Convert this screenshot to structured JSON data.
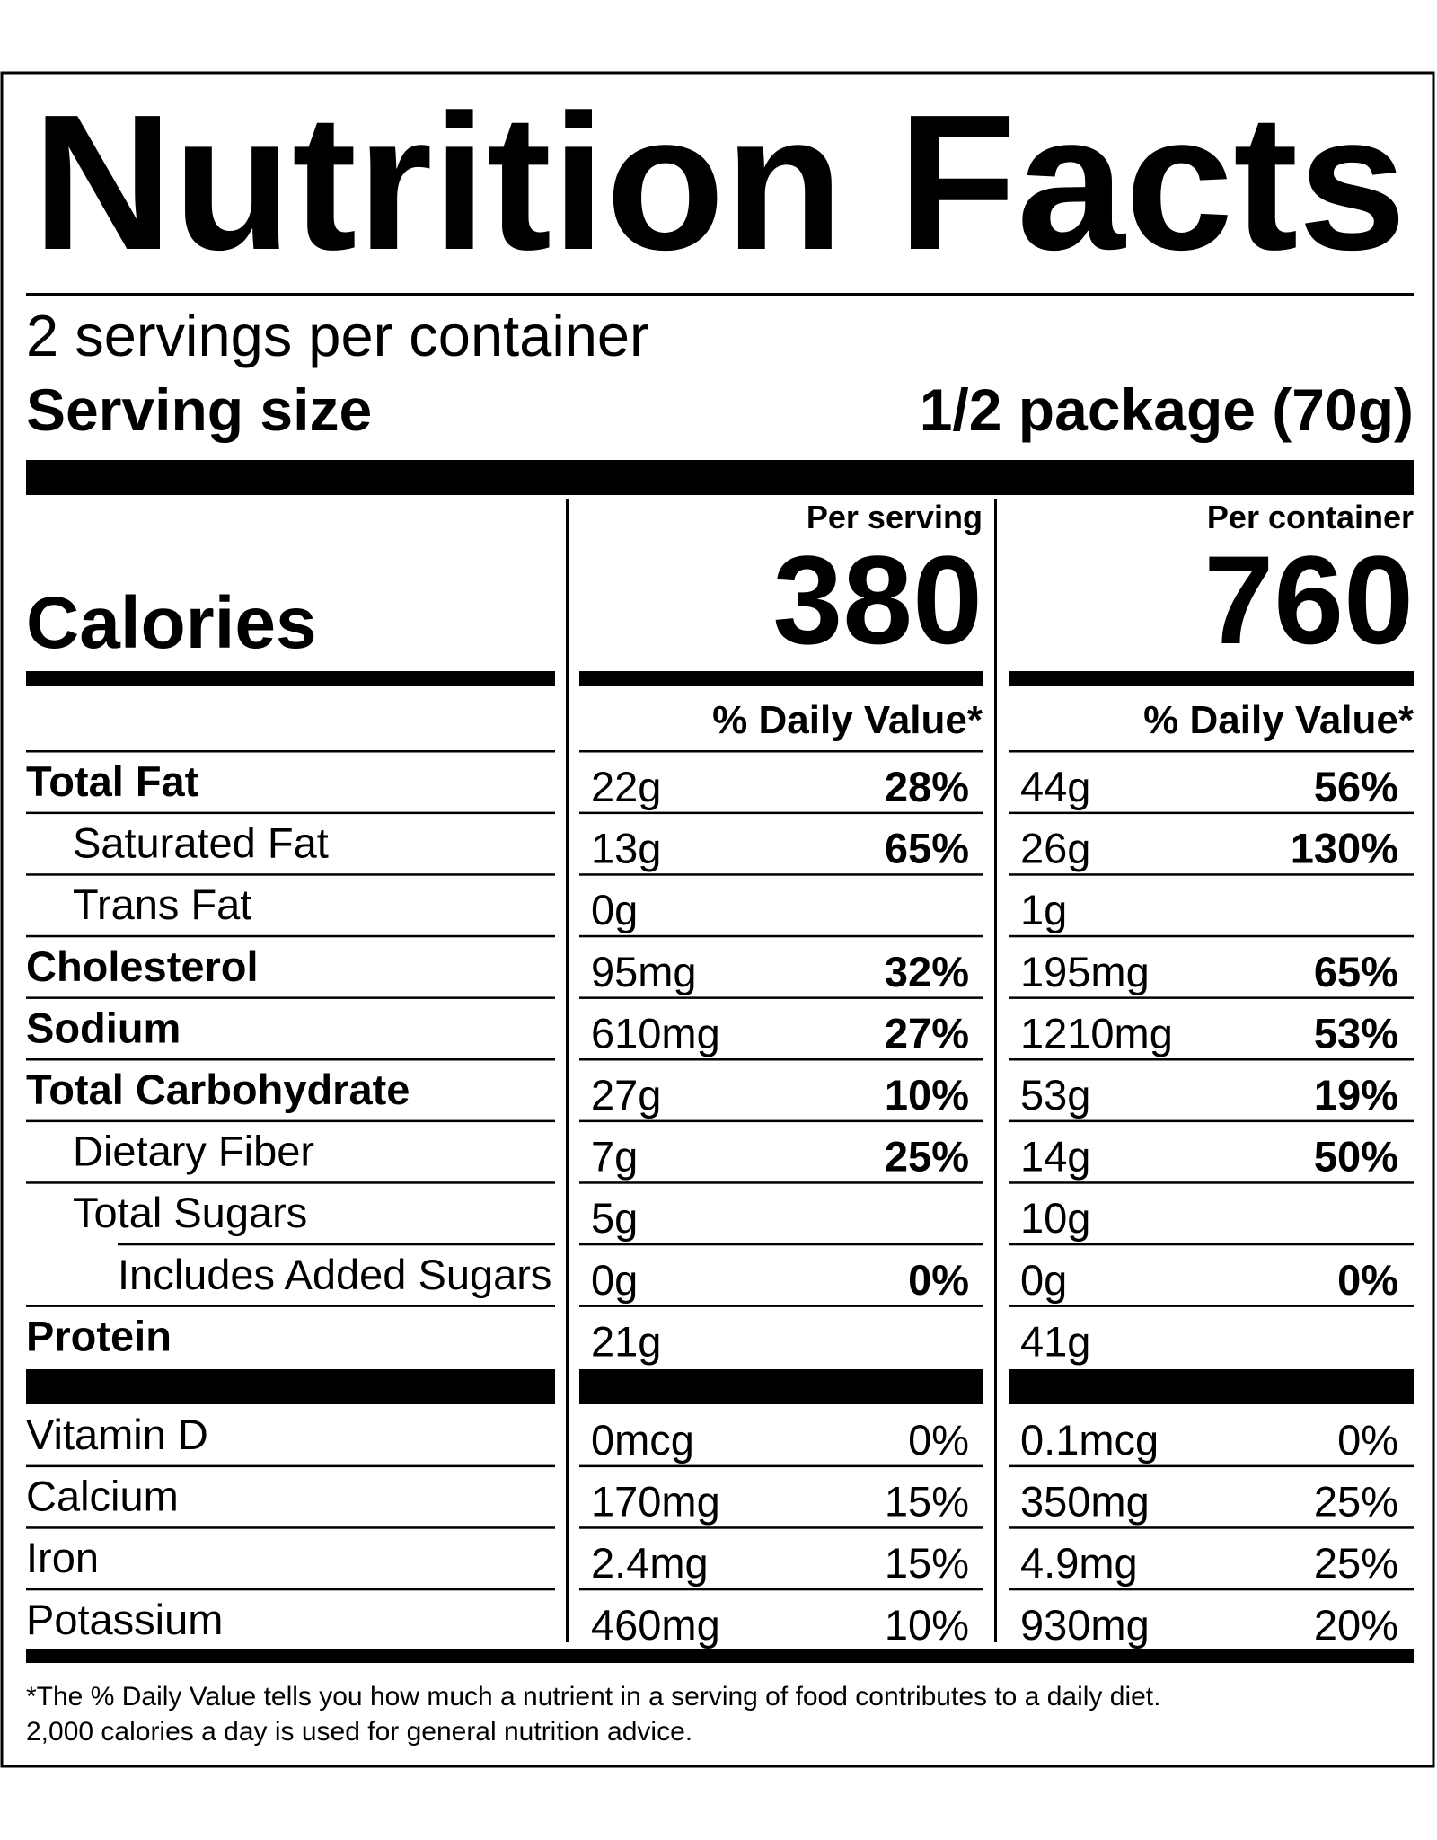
{
  "title": "Nutrition Facts",
  "servings": "2 servings per container",
  "serving_size": {
    "label": "Serving size",
    "value": "1/2 package (70g)"
  },
  "calories": {
    "label": "Calories",
    "columns": [
      {
        "heading": "Per serving",
        "value": "380",
        "dv_heading": "% Daily Value*"
      },
      {
        "heading": "Per container",
        "value": "760",
        "dv_heading": "% Daily Value*"
      }
    ]
  },
  "nutrients": [
    {
      "name": "Total Fat",
      "bold": true,
      "indent": 0,
      "values": [
        [
          "22g",
          "28%"
        ],
        [
          "44g",
          "56%"
        ]
      ]
    },
    {
      "name": "Saturated Fat",
      "bold": false,
      "indent": 1,
      "values": [
        [
          "13g",
          "65%"
        ],
        [
          "26g",
          "130%"
        ]
      ]
    },
    {
      "name": "Trans Fat",
      "bold": false,
      "indent": 1,
      "values": [
        [
          "0g"
        ],
        [
          "1g"
        ]
      ]
    },
    {
      "name": "Cholesterol",
      "bold": true,
      "indent": 0,
      "values": [
        [
          "95mg",
          "32%"
        ],
        [
          "195mg",
          "65%"
        ]
      ]
    },
    {
      "name": "Sodium",
      "bold": true,
      "indent": 0,
      "values": [
        [
          "610mg",
          "27%"
        ],
        [
          "1210mg",
          "53%"
        ]
      ]
    },
    {
      "name": "Total Carbohydrate",
      "bold": true,
      "indent": 0,
      "values": [
        [
          "27g",
          "10%"
        ],
        [
          "53g",
          "19%"
        ]
      ]
    },
    {
      "name": "Dietary Fiber",
      "bold": false,
      "indent": 1,
      "values": [
        [
          "7g",
          "25%"
        ],
        [
          "14g",
          "50%"
        ]
      ]
    },
    {
      "name": "Total Sugars",
      "bold": false,
      "indent": 1,
      "values": [
        [
          "5g"
        ],
        [
          "10g"
        ]
      ]
    },
    {
      "name": "Includes Added Sugars",
      "bold": false,
      "indent": 2,
      "values": [
        [
          "0g",
          "0%"
        ],
        [
          "0g",
          "0%"
        ]
      ]
    },
    {
      "name": "Protein",
      "bold": true,
      "indent": 0,
      "values": [
        [
          "21g"
        ],
        [
          "41g"
        ]
      ]
    }
  ],
  "vitamins": [
    {
      "name": "Vitamin D",
      "values": [
        [
          "0mcg",
          "0%"
        ],
        [
          "0.1mcg",
          "0%"
        ]
      ]
    },
    {
      "name": "Calcium",
      "values": [
        [
          "170mg",
          "15%"
        ],
        [
          "350mg",
          "25%"
        ]
      ]
    },
    {
      "name": "Iron",
      "values": [
        [
          "2.4mg",
          "15%"
        ],
        [
          "4.9mg",
          "25%"
        ]
      ]
    },
    {
      "name": "Potassium",
      "values": [
        [
          "460mg",
          "10%"
        ],
        [
          "930mg",
          "20%"
        ]
      ]
    }
  ],
  "footnote": [
    "*The % Daily Value tells you how much a nutrient in a serving of food contributes to a daily diet.",
    "2,000 calories a day is used for general nutrition advice."
  ]
}
